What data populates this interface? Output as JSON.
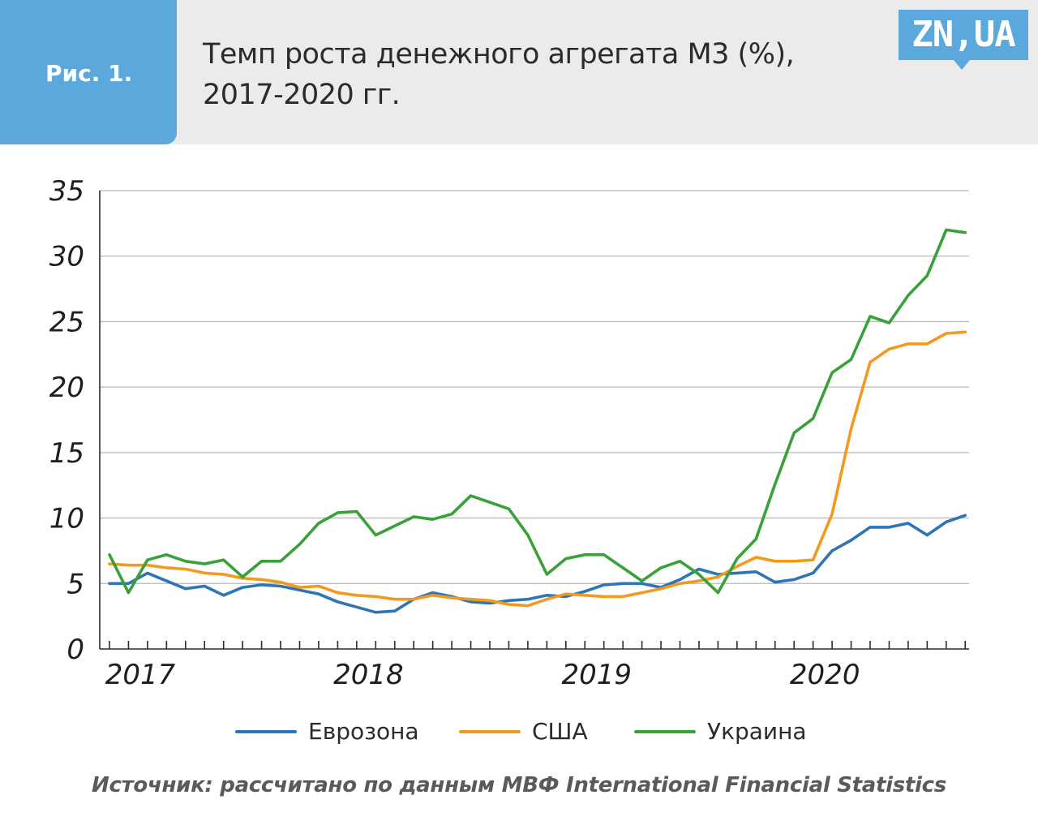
{
  "header": {
    "fig_label": "Рис. 1.",
    "title_line1": "Темп роста денежного агрегата М3 (%),",
    "title_line2": "2017-2020 гг.",
    "logo": "ZN,UA"
  },
  "colors": {
    "accent": "#5ba9dc",
    "eurozone": "#2f75b5",
    "usa": "#f29a1f",
    "ukraine": "#3aa13a",
    "grid": "#b9b9b9"
  },
  "chart_data": {
    "type": "line",
    "title": "Темп роста денежного агрегата М3 (%), 2017-2020 гг.",
    "xlabel": "",
    "ylabel": "",
    "ylim": [
      0,
      35
    ],
    "yticks": [
      "0",
      "5",
      "10",
      "15",
      "20",
      "25",
      "30",
      "35"
    ],
    "xticks": [
      "2017",
      "2018",
      "2019",
      "2020"
    ],
    "points_per_year": 12,
    "grid": true,
    "legend_position": "bottom",
    "series": [
      {
        "name": "Еврозона",
        "color": "#2f75b5",
        "values": [
          5.0,
          5.0,
          5.8,
          5.2,
          4.6,
          4.8,
          4.1,
          4.7,
          4.9,
          4.8,
          4.5,
          4.2,
          3.6,
          3.2,
          2.8,
          2.9,
          3.8,
          4.3,
          4.0,
          3.6,
          3.5,
          3.7,
          3.8,
          4.1,
          4.0,
          4.4,
          4.9,
          5.0,
          5.0,
          4.7,
          5.3,
          6.1,
          5.7,
          5.8,
          5.9,
          5.1,
          5.3,
          5.8,
          7.5,
          8.3,
          9.3,
          9.3,
          9.6,
          8.7,
          9.7,
          10.2
        ]
      },
      {
        "name": "США",
        "color": "#f29a1f",
        "values": [
          6.5,
          6.4,
          6.4,
          6.2,
          6.1,
          5.8,
          5.7,
          5.4,
          5.3,
          5.1,
          4.7,
          4.8,
          4.3,
          4.1,
          4.0,
          3.8,
          3.8,
          4.1,
          3.9,
          3.8,
          3.7,
          3.4,
          3.3,
          3.8,
          4.2,
          4.1,
          4.0,
          4.0,
          4.3,
          4.6,
          5.0,
          5.2,
          5.5,
          6.3,
          7.0,
          6.7,
          6.7,
          6.8,
          10.3,
          16.8,
          21.9,
          22.9,
          23.3,
          23.3,
          24.1,
          24.2
        ]
      },
      {
        "name": "Украина",
        "color": "#3aa13a",
        "values": [
          7.2,
          4.3,
          6.8,
          7.2,
          6.7,
          6.5,
          6.8,
          5.5,
          6.7,
          6.7,
          8.0,
          9.6,
          10.4,
          10.5,
          8.7,
          9.4,
          10.1,
          9.9,
          10.3,
          11.7,
          11.2,
          10.7,
          8.7,
          5.7,
          6.9,
          7.2,
          7.2,
          6.2,
          5.2,
          6.2,
          6.7,
          5.7,
          4.3,
          6.9,
          8.4,
          12.6,
          16.5,
          17.6,
          21.1,
          22.1,
          25.4,
          24.9,
          27.0,
          28.5,
          32.0,
          31.8
        ]
      }
    ]
  },
  "legend": {
    "items": [
      {
        "label": "Еврозона",
        "color": "#2f75b5"
      },
      {
        "label": "США",
        "color": "#f29a1f"
      },
      {
        "label": "Украина",
        "color": "#3aa13a"
      }
    ]
  },
  "source": "Источник: рассчитано по данным МВФ International Financial Statistics"
}
